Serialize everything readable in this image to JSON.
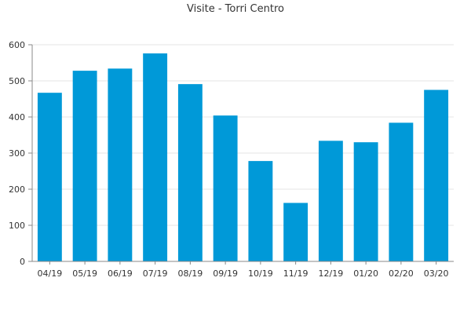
{
  "chart_data": {
    "type": "bar",
    "title": "Visite - Torri Centro",
    "categories": [
      "04/19",
      "05/19",
      "06/19",
      "07/19",
      "08/19",
      "09/19",
      "10/19",
      "11/19",
      "12/19",
      "01/20",
      "02/20",
      "03/20"
    ],
    "values": [
      467,
      528,
      534,
      576,
      491,
      404,
      278,
      162,
      334,
      330,
      384,
      475
    ],
    "xlabel": "",
    "ylabel": "",
    "ylim": [
      0,
      600
    ],
    "yticks": [
      0,
      100,
      200,
      300,
      400,
      500,
      600
    ],
    "grid": true,
    "legend": "none",
    "bar_color": "#0099d8",
    "grid_color": "#e4e4e4",
    "axis_color": "#888888"
  }
}
